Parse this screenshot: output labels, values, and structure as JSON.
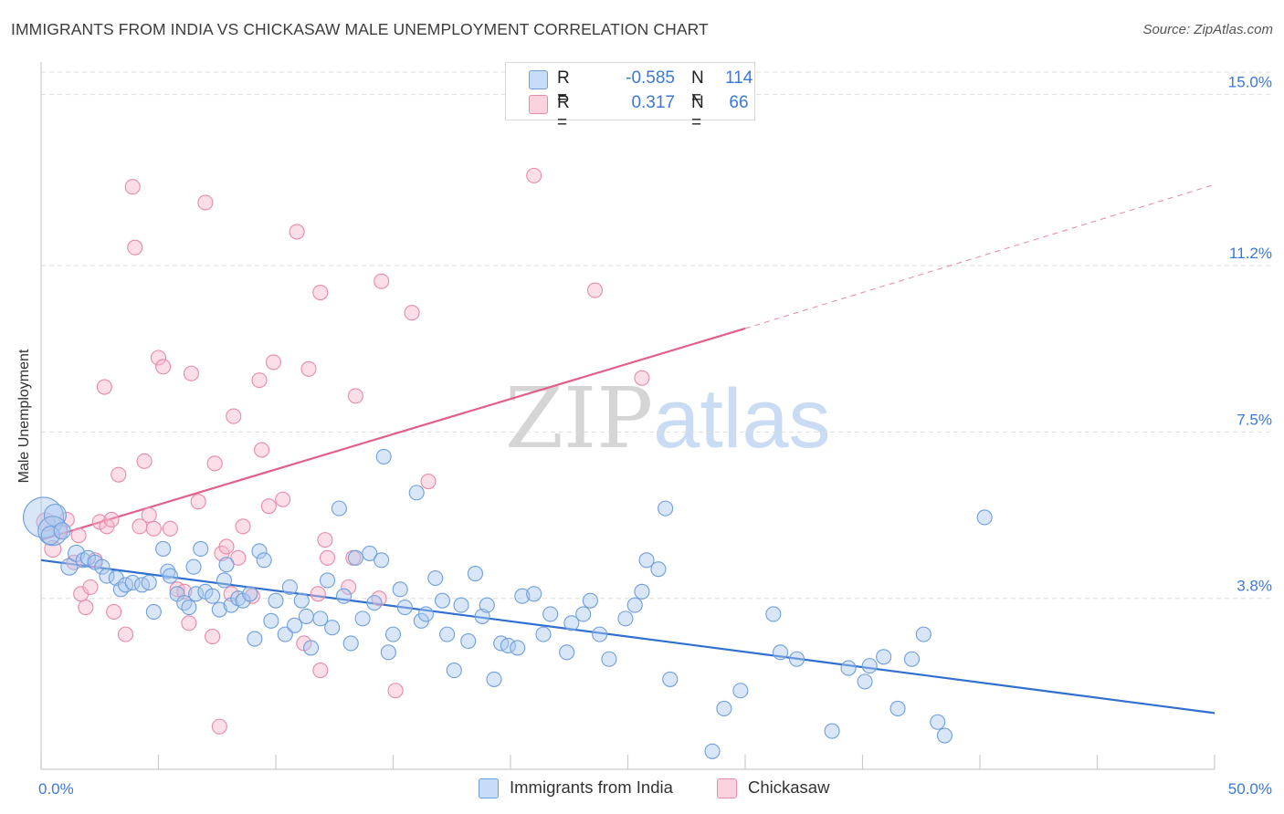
{
  "header": {
    "title": "IMMIGRANTS FROM INDIA VS CHICKASAW MALE UNEMPLOYMENT CORRELATION CHART",
    "source": "Source: ZipAtlas.com"
  },
  "watermark": {
    "zip": "ZIP",
    "atlas": "atlas"
  },
  "legend": {
    "rows": [
      {
        "r_label": "R =",
        "r_value": "-0.585",
        "n_label": "N =",
        "n_value": "114",
        "color": "#a8c8f0"
      },
      {
        "r_label": "R =",
        "r_value": "0.317",
        "n_label": "N =",
        "n_value": "66",
        "color": "#f6b6ca"
      }
    ]
  },
  "bottom_legend": [
    {
      "label": "Immigrants from India",
      "color": "#a8c8f0"
    },
    {
      "label": "Chickasaw",
      "color": "#f6b6ca"
    }
  ],
  "colors": {
    "blue_fill": "#a8c8f0",
    "blue_stroke": "#6f9fdc",
    "blue_line": "#2f6fd0",
    "pink_fill": "#f6b6ca",
    "pink_stroke": "#e88aa8",
    "pink_line": "#e0608a",
    "tick_text": "#3b78d8",
    "grid": "#dddddd"
  },
  "chart_data": {
    "type": "scatter",
    "title": "IMMIGRANTS FROM INDIA VS CHICKASAW MALE UNEMPLOYMENT CORRELATION CHART",
    "xlabel": "",
    "ylabel": "Male Unemployment",
    "xlim": [
      0,
      50
    ],
    "ylim": [
      0,
      15.5
    ],
    "x_tick_labels": [
      "0.0%",
      "50.0%"
    ],
    "y_ticks": [
      3.8,
      7.5,
      11.2,
      15.0
    ],
    "y_tick_labels": [
      "3.8%",
      "7.5%",
      "11.2%",
      "15.0%"
    ],
    "grid": true,
    "legend_position": "top-center",
    "series": [
      {
        "name": "Immigrants from India",
        "r": -0.585,
        "n": 114,
        "trend": {
          "x": [
            0,
            50
          ],
          "y": [
            4.65,
            1.25
          ],
          "dashed_from": null
        },
        "points": [
          [
            0.1,
            5.6,
            22
          ],
          [
            0.6,
            5.65,
            12
          ],
          [
            0.5,
            5.3,
            16
          ],
          [
            0.4,
            5.2,
            10
          ],
          [
            0.9,
            5.3,
            9
          ],
          [
            1.2,
            4.5,
            9
          ],
          [
            1.5,
            4.8,
            9
          ],
          [
            1.8,
            4.65,
            8
          ],
          [
            2.0,
            4.7,
            8
          ],
          [
            2.3,
            4.6,
            8
          ],
          [
            2.6,
            4.5,
            8
          ],
          [
            2.8,
            4.3,
            8
          ],
          [
            3.2,
            4.25,
            8
          ],
          [
            3.4,
            4.0,
            8
          ],
          [
            3.6,
            4.1,
            8
          ],
          [
            3.9,
            4.15,
            8
          ],
          [
            4.3,
            4.1,
            8
          ],
          [
            4.6,
            4.15,
            8
          ],
          [
            4.8,
            3.5,
            8
          ],
          [
            5.2,
            4.9,
            8
          ],
          [
            5.4,
            4.4,
            8
          ],
          [
            5.5,
            4.3,
            8
          ],
          [
            5.8,
            3.9,
            8
          ],
          [
            6.1,
            3.7,
            8
          ],
          [
            6.3,
            3.6,
            8
          ],
          [
            6.5,
            4.5,
            8
          ],
          [
            6.6,
            3.9,
            8
          ],
          [
            7.0,
            3.95,
            8
          ],
          [
            7.3,
            3.85,
            8
          ],
          [
            7.6,
            3.55,
            8
          ],
          [
            7.8,
            4.2,
            8
          ],
          [
            7.9,
            4.55,
            8
          ],
          [
            8.1,
            3.65,
            8
          ],
          [
            8.4,
            3.8,
            8
          ],
          [
            8.6,
            3.75,
            8
          ],
          [
            8.9,
            3.9,
            8
          ],
          [
            9.1,
            2.9,
            8
          ],
          [
            9.3,
            4.85,
            8
          ],
          [
            9.5,
            4.65,
            8
          ],
          [
            9.8,
            3.3,
            8
          ],
          [
            10.0,
            3.75,
            8
          ],
          [
            10.4,
            3.0,
            8
          ],
          [
            10.6,
            4.05,
            8
          ],
          [
            10.8,
            3.2,
            8
          ],
          [
            11.1,
            3.75,
            8
          ],
          [
            11.3,
            3.4,
            8
          ],
          [
            11.5,
            2.7,
            8
          ],
          [
            11.9,
            3.35,
            8
          ],
          [
            12.2,
            4.2,
            8
          ],
          [
            12.4,
            3.15,
            8
          ],
          [
            12.7,
            5.8,
            8
          ],
          [
            12.9,
            3.85,
            8
          ],
          [
            13.2,
            2.8,
            8
          ],
          [
            13.4,
            4.7,
            8
          ],
          [
            13.7,
            3.35,
            8
          ],
          [
            14.0,
            4.8,
            8
          ],
          [
            14.2,
            3.7,
            8
          ],
          [
            14.6,
            6.95,
            8
          ],
          [
            14.8,
            2.6,
            8
          ],
          [
            15.0,
            3.0,
            8
          ],
          [
            15.3,
            4.0,
            8
          ],
          [
            15.5,
            3.6,
            8
          ],
          [
            16.0,
            6.15,
            8
          ],
          [
            16.2,
            3.3,
            8
          ],
          [
            16.4,
            3.45,
            8
          ],
          [
            16.8,
            4.25,
            8
          ],
          [
            17.1,
            3.75,
            8
          ],
          [
            17.3,
            3.0,
            8
          ],
          [
            17.6,
            2.2,
            8
          ],
          [
            17.9,
            3.65,
            8
          ],
          [
            18.2,
            2.85,
            8
          ],
          [
            18.5,
            4.35,
            8
          ],
          [
            18.8,
            3.4,
            8
          ],
          [
            19.0,
            3.65,
            8
          ],
          [
            19.3,
            2.0,
            8
          ],
          [
            19.6,
            2.8,
            8
          ],
          [
            19.9,
            2.75,
            8
          ],
          [
            20.3,
            2.7,
            8
          ],
          [
            20.5,
            3.85,
            8
          ],
          [
            21.0,
            3.9,
            8
          ],
          [
            21.4,
            3.0,
            8
          ],
          [
            21.7,
            3.45,
            8
          ],
          [
            22.4,
            2.6,
            8
          ],
          [
            22.6,
            3.25,
            8
          ],
          [
            23.1,
            3.45,
            8
          ],
          [
            23.4,
            3.75,
            8
          ],
          [
            23.8,
            3.0,
            8
          ],
          [
            24.2,
            2.45,
            8
          ],
          [
            24.9,
            3.35,
            8
          ],
          [
            25.3,
            3.65,
            8
          ],
          [
            25.6,
            3.95,
            8
          ],
          [
            25.8,
            4.65,
            8
          ],
          [
            26.3,
            4.45,
            8
          ],
          [
            26.6,
            5.8,
            8
          ],
          [
            26.8,
            2.0,
            8
          ],
          [
            28.6,
            0.4,
            8
          ],
          [
            29.1,
            1.35,
            8
          ],
          [
            29.8,
            1.75,
            8
          ],
          [
            31.2,
            3.45,
            8
          ],
          [
            31.5,
            2.6,
            8
          ],
          [
            32.2,
            2.45,
            8
          ],
          [
            33.7,
            0.85,
            8
          ],
          [
            34.4,
            2.25,
            8
          ],
          [
            35.1,
            1.95,
            8
          ],
          [
            35.3,
            2.3,
            8
          ],
          [
            35.9,
            2.5,
            8
          ],
          [
            36.5,
            1.35,
            8
          ],
          [
            37.1,
            2.45,
            8
          ],
          [
            37.6,
            3.0,
            8
          ],
          [
            38.2,
            1.05,
            8
          ],
          [
            38.5,
            0.75,
            8
          ],
          [
            40.2,
            5.6,
            8
          ],
          [
            14.5,
            4.65,
            8
          ],
          [
            6.8,
            4.9,
            8
          ]
        ]
      },
      {
        "name": "Chickasaw",
        "r": 0.317,
        "n": 66,
        "trend": {
          "x": [
            0,
            30,
            50
          ],
          "y": [
            5.1,
            9.8,
            13.0
          ],
          "dashed_from": 30
        },
        "points": [
          [
            0.2,
            5.5,
            10
          ],
          [
            0.5,
            4.9,
            9
          ],
          [
            0.8,
            5.3,
            8
          ],
          [
            1.1,
            5.55,
            8
          ],
          [
            1.4,
            4.6,
            8
          ],
          [
            1.6,
            5.2,
            8
          ],
          [
            1.7,
            3.9,
            8
          ],
          [
            1.9,
            3.6,
            8
          ],
          [
            2.1,
            4.05,
            8
          ],
          [
            2.3,
            4.65,
            8
          ],
          [
            2.5,
            5.5,
            8
          ],
          [
            2.7,
            8.5,
            8
          ],
          [
            2.8,
            5.4,
            8
          ],
          [
            3.0,
            5.55,
            8
          ],
          [
            3.1,
            3.5,
            8
          ],
          [
            3.3,
            6.55,
            8
          ],
          [
            3.6,
            3.0,
            8
          ],
          [
            3.9,
            12.95,
            8
          ],
          [
            4.0,
            11.6,
            8
          ],
          [
            4.2,
            5.4,
            8
          ],
          [
            4.4,
            6.85,
            8
          ],
          [
            4.6,
            5.65,
            8
          ],
          [
            4.8,
            5.35,
            8
          ],
          [
            5.0,
            9.15,
            8
          ],
          [
            5.2,
            8.95,
            8
          ],
          [
            5.5,
            5.35,
            8
          ],
          [
            5.8,
            4.0,
            8
          ],
          [
            6.1,
            3.95,
            8
          ],
          [
            6.3,
            3.25,
            8
          ],
          [
            6.4,
            8.8,
            8
          ],
          [
            6.7,
            5.95,
            8
          ],
          [
            7.0,
            12.6,
            8
          ],
          [
            7.3,
            2.95,
            8
          ],
          [
            7.4,
            6.8,
            8
          ],
          [
            7.6,
            0.95,
            8
          ],
          [
            7.7,
            4.8,
            8
          ],
          [
            7.9,
            4.95,
            8
          ],
          [
            8.1,
            3.9,
            8
          ],
          [
            8.2,
            7.85,
            8
          ],
          [
            8.4,
            4.7,
            8
          ],
          [
            8.6,
            5.4,
            8
          ],
          [
            9.0,
            3.85,
            8
          ],
          [
            9.3,
            8.65,
            8
          ],
          [
            9.4,
            7.1,
            8
          ],
          [
            9.7,
            5.85,
            8
          ],
          [
            9.9,
            9.05,
            8
          ],
          [
            10.3,
            6.0,
            8
          ],
          [
            10.9,
            11.95,
            8
          ],
          [
            11.2,
            2.8,
            8
          ],
          [
            11.4,
            8.9,
            8
          ],
          [
            11.8,
            3.9,
            8
          ],
          [
            11.9,
            10.6,
            8
          ],
          [
            11.9,
            2.2,
            8
          ],
          [
            12.1,
            5.1,
            8
          ],
          [
            12.2,
            4.7,
            8
          ],
          [
            13.1,
            4.05,
            8
          ],
          [
            13.3,
            4.7,
            8
          ],
          [
            13.4,
            8.3,
            8
          ],
          [
            14.4,
            3.8,
            8
          ],
          [
            14.5,
            10.85,
            8
          ],
          [
            15.1,
            1.75,
            8
          ],
          [
            15.8,
            10.15,
            8
          ],
          [
            16.5,
            6.4,
            8
          ],
          [
            21.0,
            13.2,
            8
          ],
          [
            23.6,
            10.65,
            8
          ],
          [
            25.6,
            8.7,
            8
          ]
        ]
      }
    ]
  }
}
